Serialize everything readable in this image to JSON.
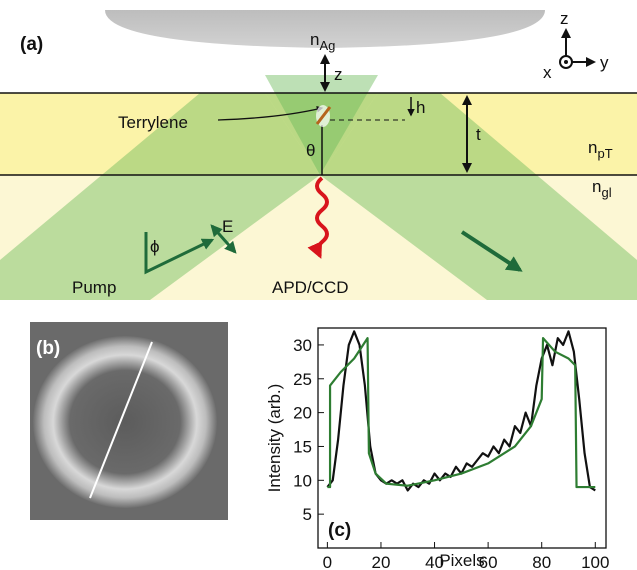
{
  "diagram": {
    "panel_label": "(a)",
    "n_ag": {
      "main": "n",
      "sub": "Ag"
    },
    "n_pt": {
      "main": "n",
      "sub": "pT"
    },
    "n_gl": {
      "main": "n",
      "sub": "gl"
    },
    "z_gap": "z",
    "h": "h",
    "t": "t",
    "terrylene": "Terrylene",
    "theta": "θ",
    "e_field": "E",
    "phi": "ϕ",
    "pump": "Pump",
    "detector": "APD/CCD",
    "axes": {
      "z": "z",
      "x": "x",
      "y": "y"
    }
  },
  "image": {
    "panel_label": "(b)"
  },
  "chart_data": {
    "type": "line",
    "panel_label": "(c)",
    "x_label": "Pixels",
    "y_label": "Intensity (arb.)",
    "xlim": [
      -3.5,
      104
    ],
    "ylim": [
      0,
      32.5
    ],
    "xticks": [
      0,
      20,
      40,
      60,
      80,
      100
    ],
    "yticks": [
      5,
      10,
      15,
      20,
      25,
      30
    ],
    "series": [
      {
        "color": "#111111",
        "x": [
          0,
          2,
          4,
          6,
          8,
          10,
          12,
          14,
          16,
          18,
          20,
          22,
          24,
          26,
          28,
          30,
          32,
          34,
          36,
          38,
          40,
          42,
          44,
          46,
          48,
          50,
          52,
          54,
          56,
          58,
          60,
          62,
          64,
          66,
          68,
          70,
          72,
          74,
          76,
          78,
          80,
          82,
          84,
          86,
          88,
          90,
          92,
          94,
          96,
          98,
          100
        ],
        "values": [
          9,
          10,
          16,
          24,
          30,
          32,
          30,
          24,
          15,
          11,
          10,
          9.5,
          10,
          9.5,
          10,
          8.5,
          9.5,
          9,
          10,
          9.5,
          11,
          10,
          11,
          10.5,
          12,
          11,
          12.5,
          12,
          13,
          14,
          13.5,
          15,
          14,
          16,
          15,
          18,
          17,
          20,
          18,
          24,
          28,
          30,
          27,
          31,
          30,
          32,
          29,
          22,
          14,
          9,
          8.5
        ]
      },
      {
        "color": "#2e7d32",
        "x": [
          0,
          1,
          1,
          5,
          10,
          15,
          15.5,
          18,
          22,
          30,
          40,
          50,
          60,
          70,
          76,
          80,
          80.5,
          85,
          90,
          92.5,
          93,
          100
        ],
        "values": [
          9,
          9,
          24,
          26,
          28,
          31,
          14,
          11,
          9.5,
          9.2,
          10,
          11,
          12.5,
          15,
          18,
          22,
          31,
          29,
          28,
          27,
          9,
          9
        ]
      }
    ]
  }
}
